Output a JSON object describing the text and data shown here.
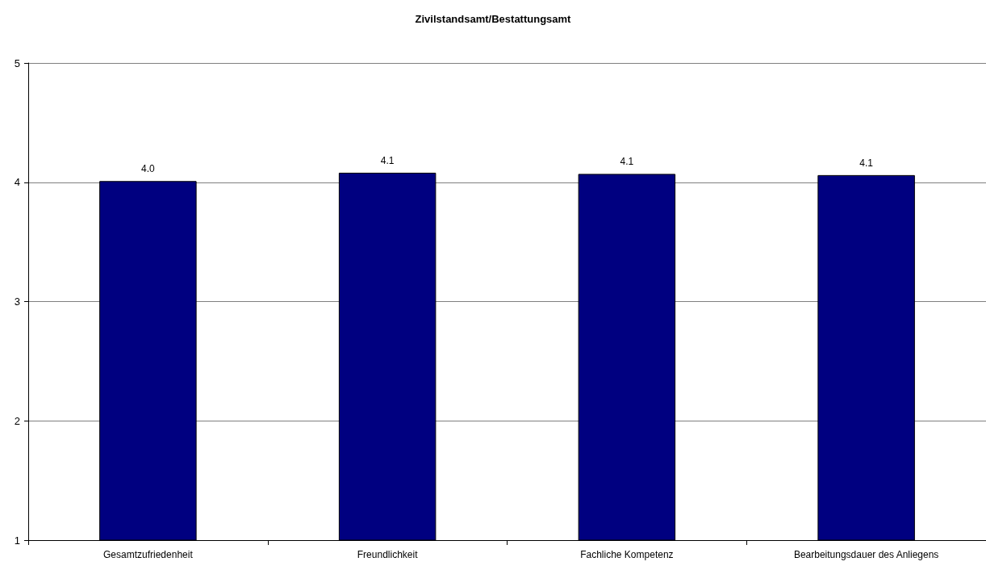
{
  "chart_data": {
    "type": "bar",
    "title": "Zivilstandsamt/Bestattungsamt",
    "categories": [
      "Gesamtzufriedenheit",
      "Freundlichkeit",
      "Fachliche Kompetenz",
      "Bearbeitungsdauer des Anliegens"
    ],
    "values": [
      4.01,
      4.08,
      4.07,
      4.06
    ],
    "value_labels": [
      "4.0",
      "4.1",
      "4.1",
      "4.1"
    ],
    "color": "#000080",
    "ylim": [
      1,
      5
    ],
    "yticks": [
      1,
      2,
      3,
      4,
      5
    ],
    "grid": "y"
  }
}
